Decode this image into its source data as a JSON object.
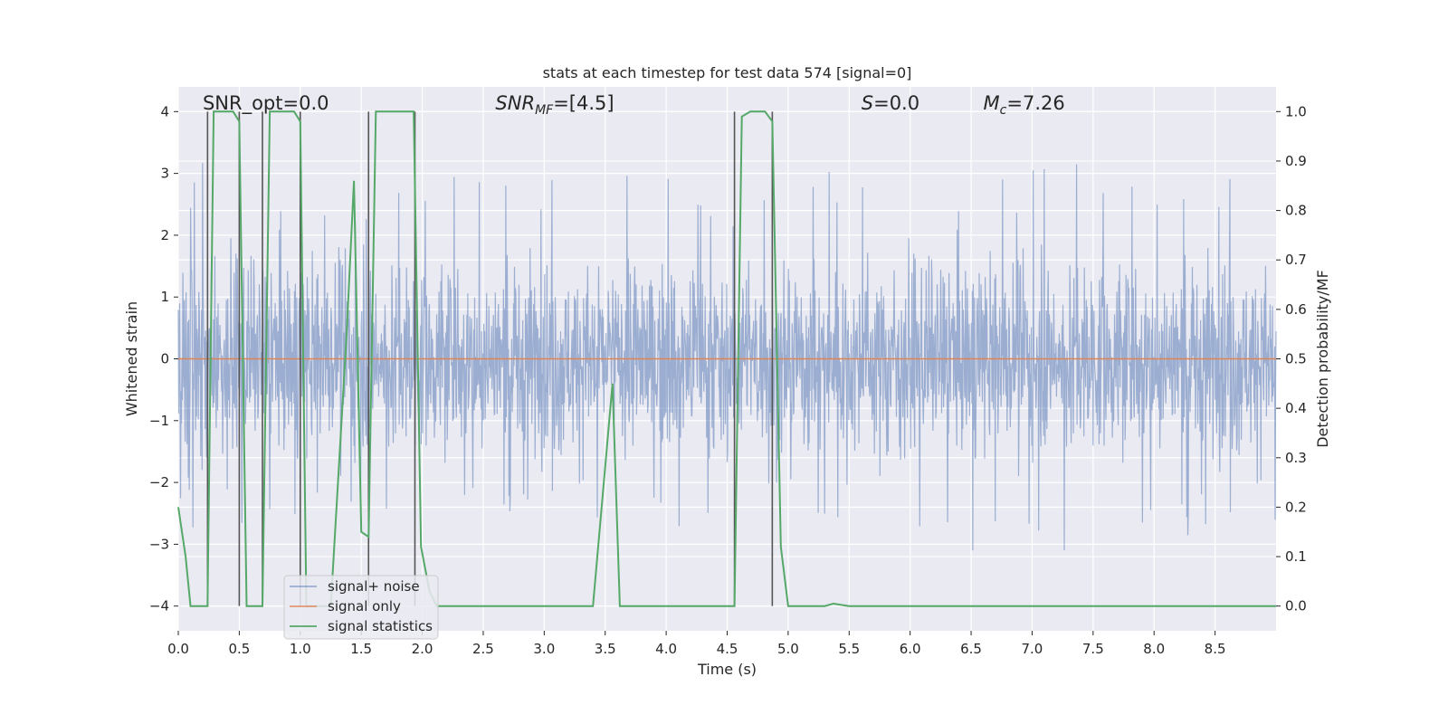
{
  "chart_data": {
    "type": "line",
    "title": "stats at each timestep for test data 574 [signal=0]",
    "xlabel": "Time (s)",
    "ylabel": "Whitened strain",
    "y2label": "Detection probability/MF",
    "xlim": [
      0,
      9.0
    ],
    "ylim": [
      -4.4,
      4.4
    ],
    "y2lim": [
      -0.05,
      1.05
    ],
    "xticks": [
      "0.0",
      "0.5",
      "1.0",
      "1.5",
      "2.0",
      "2.5",
      "3.0",
      "3.5",
      "4.0",
      "4.5",
      "5.0",
      "5.5",
      "6.0",
      "6.5",
      "7.0",
      "7.5",
      "8.0",
      "8.5"
    ],
    "yticks": [
      "4",
      "3",
      "2",
      "1",
      "0",
      "−1",
      "−2",
      "−3",
      "−4"
    ],
    "y2ticks": [
      "1.0",
      "0.9",
      "0.8",
      "0.7",
      "0.6",
      "0.5",
      "0.4",
      "0.3",
      "0.2",
      "0.1",
      "0.0"
    ],
    "grid": true,
    "legend_position": "lower-left",
    "annotations": [
      {
        "text": "SNR_opt=0.0",
        "x": 0.2
      },
      {
        "text_parts": [
          "SNR",
          "MF",
          "=[4.5]"
        ],
        "x": 2.6
      },
      {
        "text_parts": [
          "S",
          "",
          "=0.0"
        ],
        "x": 5.6
      },
      {
        "text_parts": [
          "M",
          "c",
          "=7.26"
        ],
        "x": 6.6
      }
    ],
    "vertical_lines": [
      {
        "x": 0.24,
        "y": [
          -4.0,
          4.0
        ]
      },
      {
        "x": 0.5,
        "y": [
          -4.0,
          4.0
        ]
      },
      {
        "x": 0.69,
        "y": [
          -4.0,
          4.0
        ]
      },
      {
        "x": 1.0,
        "y": [
          -4.0,
          4.0
        ]
      },
      {
        "x": 1.56,
        "y": [
          -4.0,
          4.0
        ]
      },
      {
        "x": 1.94,
        "y": [
          -4.0,
          4.0
        ]
      },
      {
        "x": 4.56,
        "y": [
          -4.0,
          4.0
        ]
      },
      {
        "x": 4.87,
        "y": [
          -4.0,
          4.0
        ]
      }
    ],
    "series": [
      {
        "name": "signal+ noise",
        "color": "#4c72b0",
        "axis": "left",
        "kind": "noise",
        "amplitude_envelope": [
          [
            0.0,
            2.4,
            -3.0
          ],
          [
            0.3,
            4.0,
            -2.4
          ],
          [
            0.6,
            3.2,
            -3.1
          ],
          [
            1.0,
            2.6,
            -2.7
          ],
          [
            1.5,
            2.3,
            -2.6
          ],
          [
            2.0,
            3.0,
            -2.5
          ],
          [
            2.5,
            3.6,
            -2.8
          ],
          [
            3.0,
            3.1,
            -2.5
          ],
          [
            3.5,
            3.0,
            -2.8
          ],
          [
            4.0,
            3.2,
            -2.9
          ],
          [
            4.5,
            3.0,
            -2.6
          ],
          [
            5.0,
            3.1,
            -2.5
          ],
          [
            5.5,
            3.1,
            -2.7
          ],
          [
            6.0,
            3.0,
            -2.9
          ],
          [
            6.5,
            3.0,
            -3.4
          ],
          [
            7.0,
            3.2,
            -3.0
          ],
          [
            7.5,
            3.2,
            -3.5
          ],
          [
            8.0,
            3.1,
            -3.2
          ],
          [
            8.5,
            3.2,
            -3.0
          ],
          [
            9.0,
            2.8,
            -2.8
          ]
        ]
      },
      {
        "name": "signal only",
        "color": "#dd8452",
        "axis": "left",
        "x": [
          0.0,
          9.0
        ],
        "y": [
          0.0,
          0.0
        ]
      },
      {
        "name": "signal statistics",
        "color": "#55a868",
        "axis": "right",
        "x": [
          0.0,
          0.06,
          0.1,
          0.24,
          0.29,
          0.4,
          0.45,
          0.5,
          0.56,
          0.67,
          0.69,
          0.75,
          0.85,
          0.95,
          1.0,
          1.05,
          1.25,
          1.38,
          1.44,
          1.5,
          1.56,
          1.62,
          1.75,
          1.93,
          1.99,
          2.06,
          2.12,
          2.5,
          3.0,
          3.4,
          3.56,
          3.62,
          3.69,
          3.9,
          4.0,
          4.2,
          4.56,
          4.62,
          4.69,
          4.81,
          4.87,
          4.94,
          5.0,
          5.3,
          5.37,
          5.5,
          6.0,
          7.0,
          8.0,
          9.0
        ],
        "y": [
          0.2,
          0.1,
          0.0,
          0.0,
          1.0,
          1.0,
          1.0,
          0.98,
          0.0,
          0.0,
          0.0,
          1.0,
          1.0,
          1.0,
          0.98,
          0.0,
          0.0,
          0.55,
          0.86,
          0.15,
          0.14,
          1.0,
          1.0,
          1.0,
          0.12,
          0.03,
          0.0,
          0.0,
          0.0,
          0.0,
          0.45,
          0.0,
          0.0,
          0.0,
          0.0,
          0.0,
          0.0,
          0.99,
          1.0,
          1.0,
          0.98,
          0.12,
          0.0,
          0.0,
          0.005,
          0.0,
          0.0,
          0.0,
          0.0,
          0.0
        ]
      }
    ]
  }
}
